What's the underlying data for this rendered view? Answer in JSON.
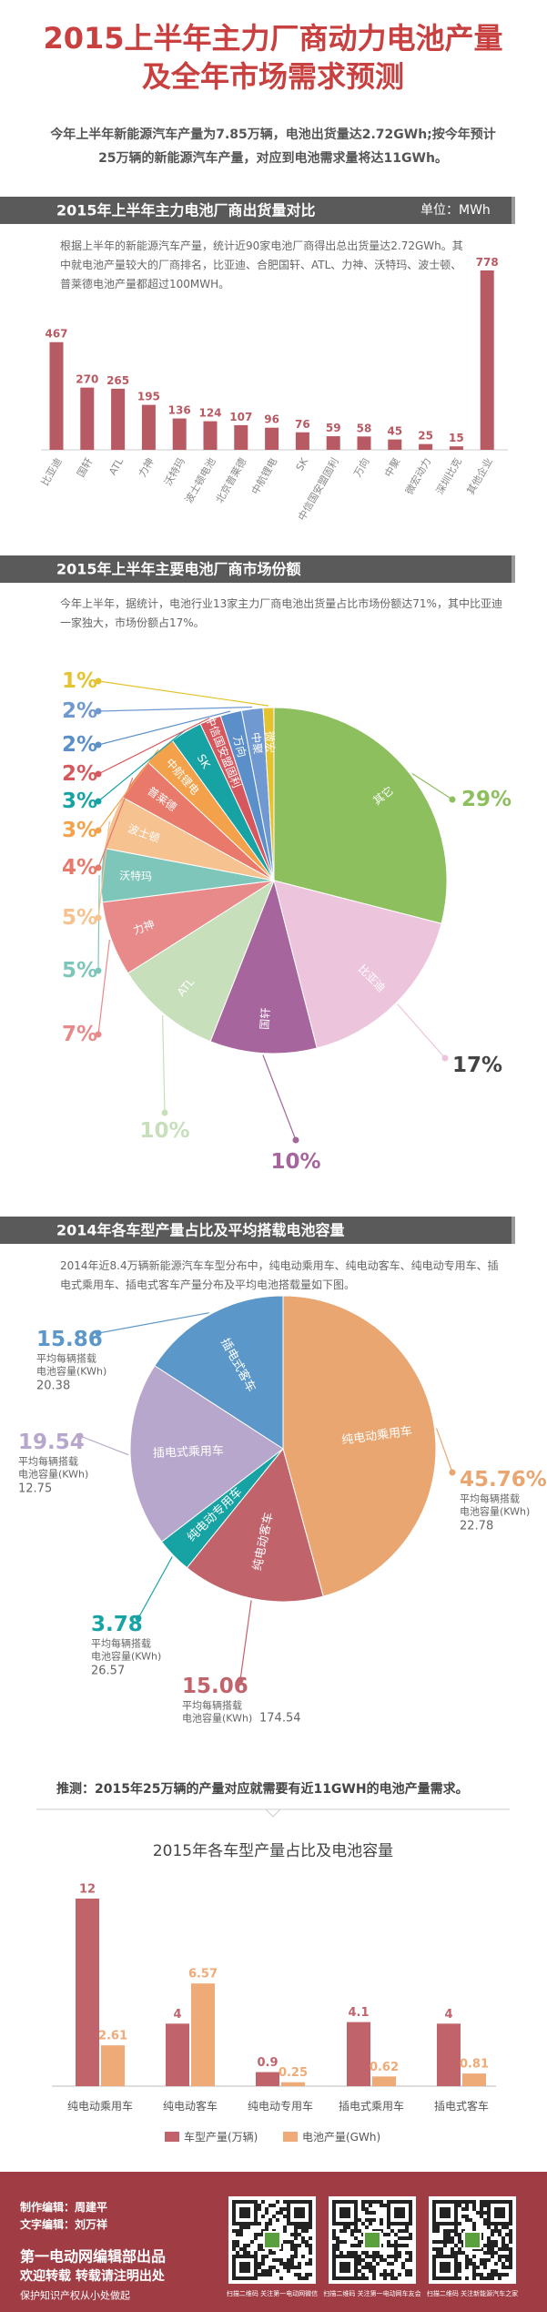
{
  "header": {
    "title": [
      "2015上半年主力厂商动力电池产量",
      "及全年市场需求预测"
    ],
    "intro": [
      "今年上半年新能源汽车产量为7.85万辆，电池出货量达2.72GWh;按今年预计",
      "25万辆的新能源汽车产量，对应到电池需求量将达11GWh。"
    ]
  },
  "chart_data": [
    {
      "type": "bar",
      "title": "2015年上半年主力电池厂商出货量对比",
      "unit": "单位：MWh",
      "description": [
        "根据上半年的新能源汽车产量，统计近90家电池厂商得出总出货量达2.72GWh。其",
        "中就电池产量较大的厂商排名，比亚迪、合肥国轩、ATL、力神、沃特玛、波士顿、",
        "普莱德电池产量都超过100MWH。"
      ],
      "categories": [
        "比亚迪",
        "国轩",
        "ATL",
        "力神",
        "沃特玛",
        "波士顿电池",
        "北京普莱德",
        "中航锂电",
        "SK",
        "中信国安盟固利",
        "万向",
        "中聚",
        "微宏动力",
        "深圳比克",
        "其他企业"
      ],
      "values": [
        467,
        270,
        265,
        195,
        136,
        124,
        107,
        96,
        76,
        59,
        58,
        45,
        25,
        15,
        778
      ],
      "color": "#b85a63"
    },
    {
      "type": "pie",
      "title": "2015年上半年主要电池厂商市场份额",
      "description": [
        "今年上半年，据统计，电池行业13家主力厂商电池出货量占比市场份额达71%，其中比亚迪",
        "一家独大，市场份额占17%。"
      ],
      "categories": [
        "其它",
        "比亚迪",
        "国轩",
        "ATL",
        "力神",
        "沃特玛",
        "波士顿",
        "普莱德",
        "中航锂电",
        "SK",
        "中信国安盟固利",
        "万向",
        "中聚",
        "微宏"
      ],
      "values": [
        29,
        17,
        10,
        10,
        7,
        5,
        5,
        4,
        3,
        3,
        2,
        2,
        2,
        1
      ],
      "value_labels": [
        "29%",
        "17%",
        "10%",
        "10%",
        "7%",
        "5%",
        "5%",
        "4%",
        "3%",
        "3%",
        "2%",
        "2%",
        "2%",
        "1%"
      ],
      "colors": [
        "#8dbf5e",
        "#ecc4dc",
        "#a6659d",
        "#c7dfba",
        "#e88a8a",
        "#7fc6ba",
        "#f5c290",
        "#e8796b",
        "#f3a24b",
        "#17a3a4",
        "#d6585f",
        "#5a8fc9",
        "#7099d2",
        "#e4c32e"
      ],
      "label_colors": [
        "#8dbf5e",
        "#444444",
        "#a6659d",
        "#c7dfba",
        "#e88a8a",
        "#7fc6ba",
        "#f5c290",
        "#e8796b",
        "#f3a24b",
        "#17a3a4",
        "#d6585f",
        "#5a8fc9",
        "#7099d2",
        "#e4c32e"
      ]
    },
    {
      "type": "pie",
      "title": "2014年各车型产量占比及平均搭载电池容量",
      "description": [
        "2014年近8.4万辆新能源汽车车型分布中，纯电动乘用车、纯电动客车、纯电动专用车、插",
        "电式乘用车、插电式客车产量分布及平均电池搭载量如下图。"
      ],
      "categories": [
        "纯电动乘用车",
        "纯电动客车",
        "纯电动专用车",
        "插电式乘用车",
        "插电式客车"
      ],
      "values": [
        45.76,
        15.06,
        3.78,
        19.54,
        15.86
      ],
      "value_labels": [
        "45.76%",
        "15.06",
        "3.78",
        "19.54",
        "15.86"
      ],
      "colors": [
        "#eaa670",
        "#c0636b",
        "#17a3a4",
        "#b8a7cc",
        "#5b97c9"
      ],
      "capacity_label": [
        "平均每辆搭载",
        "电池容量(KWh)"
      ],
      "capacities": [
        22.78,
        174.54,
        26.57,
        12.75,
        20.38
      ]
    },
    {
      "type": "bar",
      "title": "2015年各车型产量占比及电池容量",
      "categories": [
        "纯电动乘用车",
        "纯电动客车",
        "纯电动专用车",
        "插电式乘用车",
        "插电式客车"
      ],
      "series": [
        {
          "name": "车型产量(万辆)",
          "color": "#c0636b",
          "values": [
            12,
            4,
            0.9,
            4.1,
            4
          ]
        },
        {
          "name": "电池产量(GWh)",
          "color": "#eeaa77",
          "values": [
            2.61,
            6.57,
            0.25,
            0.62,
            0.81
          ]
        }
      ],
      "legend": "bottom"
    }
  ],
  "prediction": "推测：2015年25万辆的产量对应就需要有近11GWH的电池产量需求。",
  "footer": {
    "editors": [
      "制作编辑：周建平",
      "文字编辑：刘万祥"
    ],
    "publisher": "第一电动网编辑部出品",
    "notice": [
      "欢迎转载 转载请注明出处",
      "保护知识产权从小处做起"
    ],
    "qr_captions": [
      "扫描二维码 关注第一电动网微信",
      "扫描二维码 关注第一电动网车友会",
      "扫描二维码 关注新能源汽车之家"
    ]
  }
}
